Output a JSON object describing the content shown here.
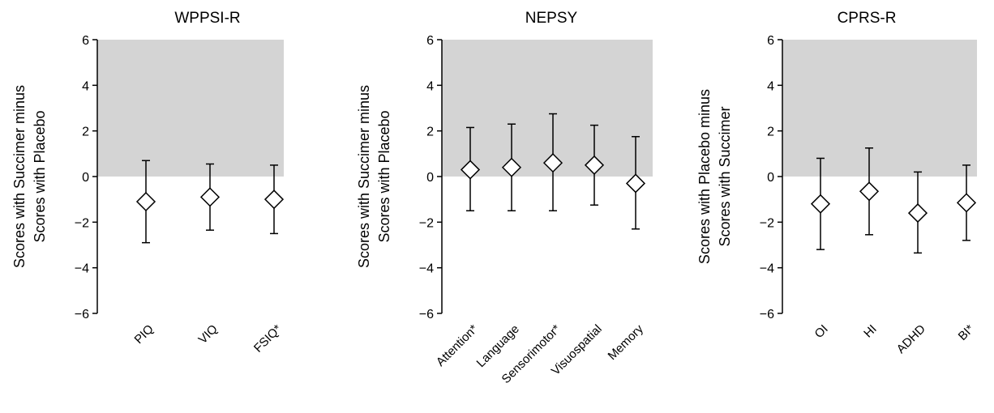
{
  "chart_data": [
    {
      "type": "scatter",
      "title": "WPPSI-R",
      "ylabel_lines": [
        "Scores with Succimer minus",
        "Scores with Placebo"
      ],
      "ylim": [
        -6,
        6
      ],
      "yticks": [
        "6",
        "4",
        "2",
        "0",
        "−2",
        "−4",
        "−6"
      ],
      "shaded_region": [
        0,
        6
      ],
      "categories": [
        "PIQ",
        "VIQ",
        "FSIQ*"
      ],
      "values": [
        -1.1,
        -0.9,
        -1.0
      ],
      "lower": [
        -2.9,
        -2.35,
        -2.5
      ],
      "upper": [
        0.7,
        0.55,
        0.5
      ]
    },
    {
      "type": "scatter",
      "title": "NEPSY",
      "ylabel_lines": [
        "Scores with Succimer minus",
        "Scores with Placebo"
      ],
      "ylim": [
        -6,
        6
      ],
      "yticks": [
        "6",
        "4",
        "2",
        "0",
        "−2",
        "−4",
        "−6"
      ],
      "shaded_region": [
        0,
        6
      ],
      "categories": [
        "Attention*",
        "Language",
        "Sensorimotor*",
        "Visuospatial",
        "Memory"
      ],
      "values": [
        0.3,
        0.4,
        0.6,
        0.5,
        -0.3
      ],
      "lower": [
        -1.5,
        -1.5,
        -1.5,
        -1.25,
        -2.3
      ],
      "upper": [
        2.15,
        2.3,
        2.75,
        2.25,
        1.75
      ]
    },
    {
      "type": "scatter",
      "title": "CPRS-R",
      "ylabel_lines": [
        "Scores with Placebo minus",
        "Scores with Succimer"
      ],
      "ylim": [
        -6,
        6
      ],
      "yticks": [
        "6",
        "4",
        "2",
        "0",
        "−2",
        "−4",
        "−6"
      ],
      "shaded_region": [
        0,
        6
      ],
      "categories": [
        "OI",
        "HI",
        "ADHD",
        "BI*"
      ],
      "values": [
        -1.2,
        -0.65,
        -1.6,
        -1.15
      ],
      "lower": [
        -3.2,
        -2.55,
        -3.35,
        -2.8
      ],
      "upper": [
        0.8,
        1.25,
        0.2,
        0.5
      ]
    }
  ]
}
